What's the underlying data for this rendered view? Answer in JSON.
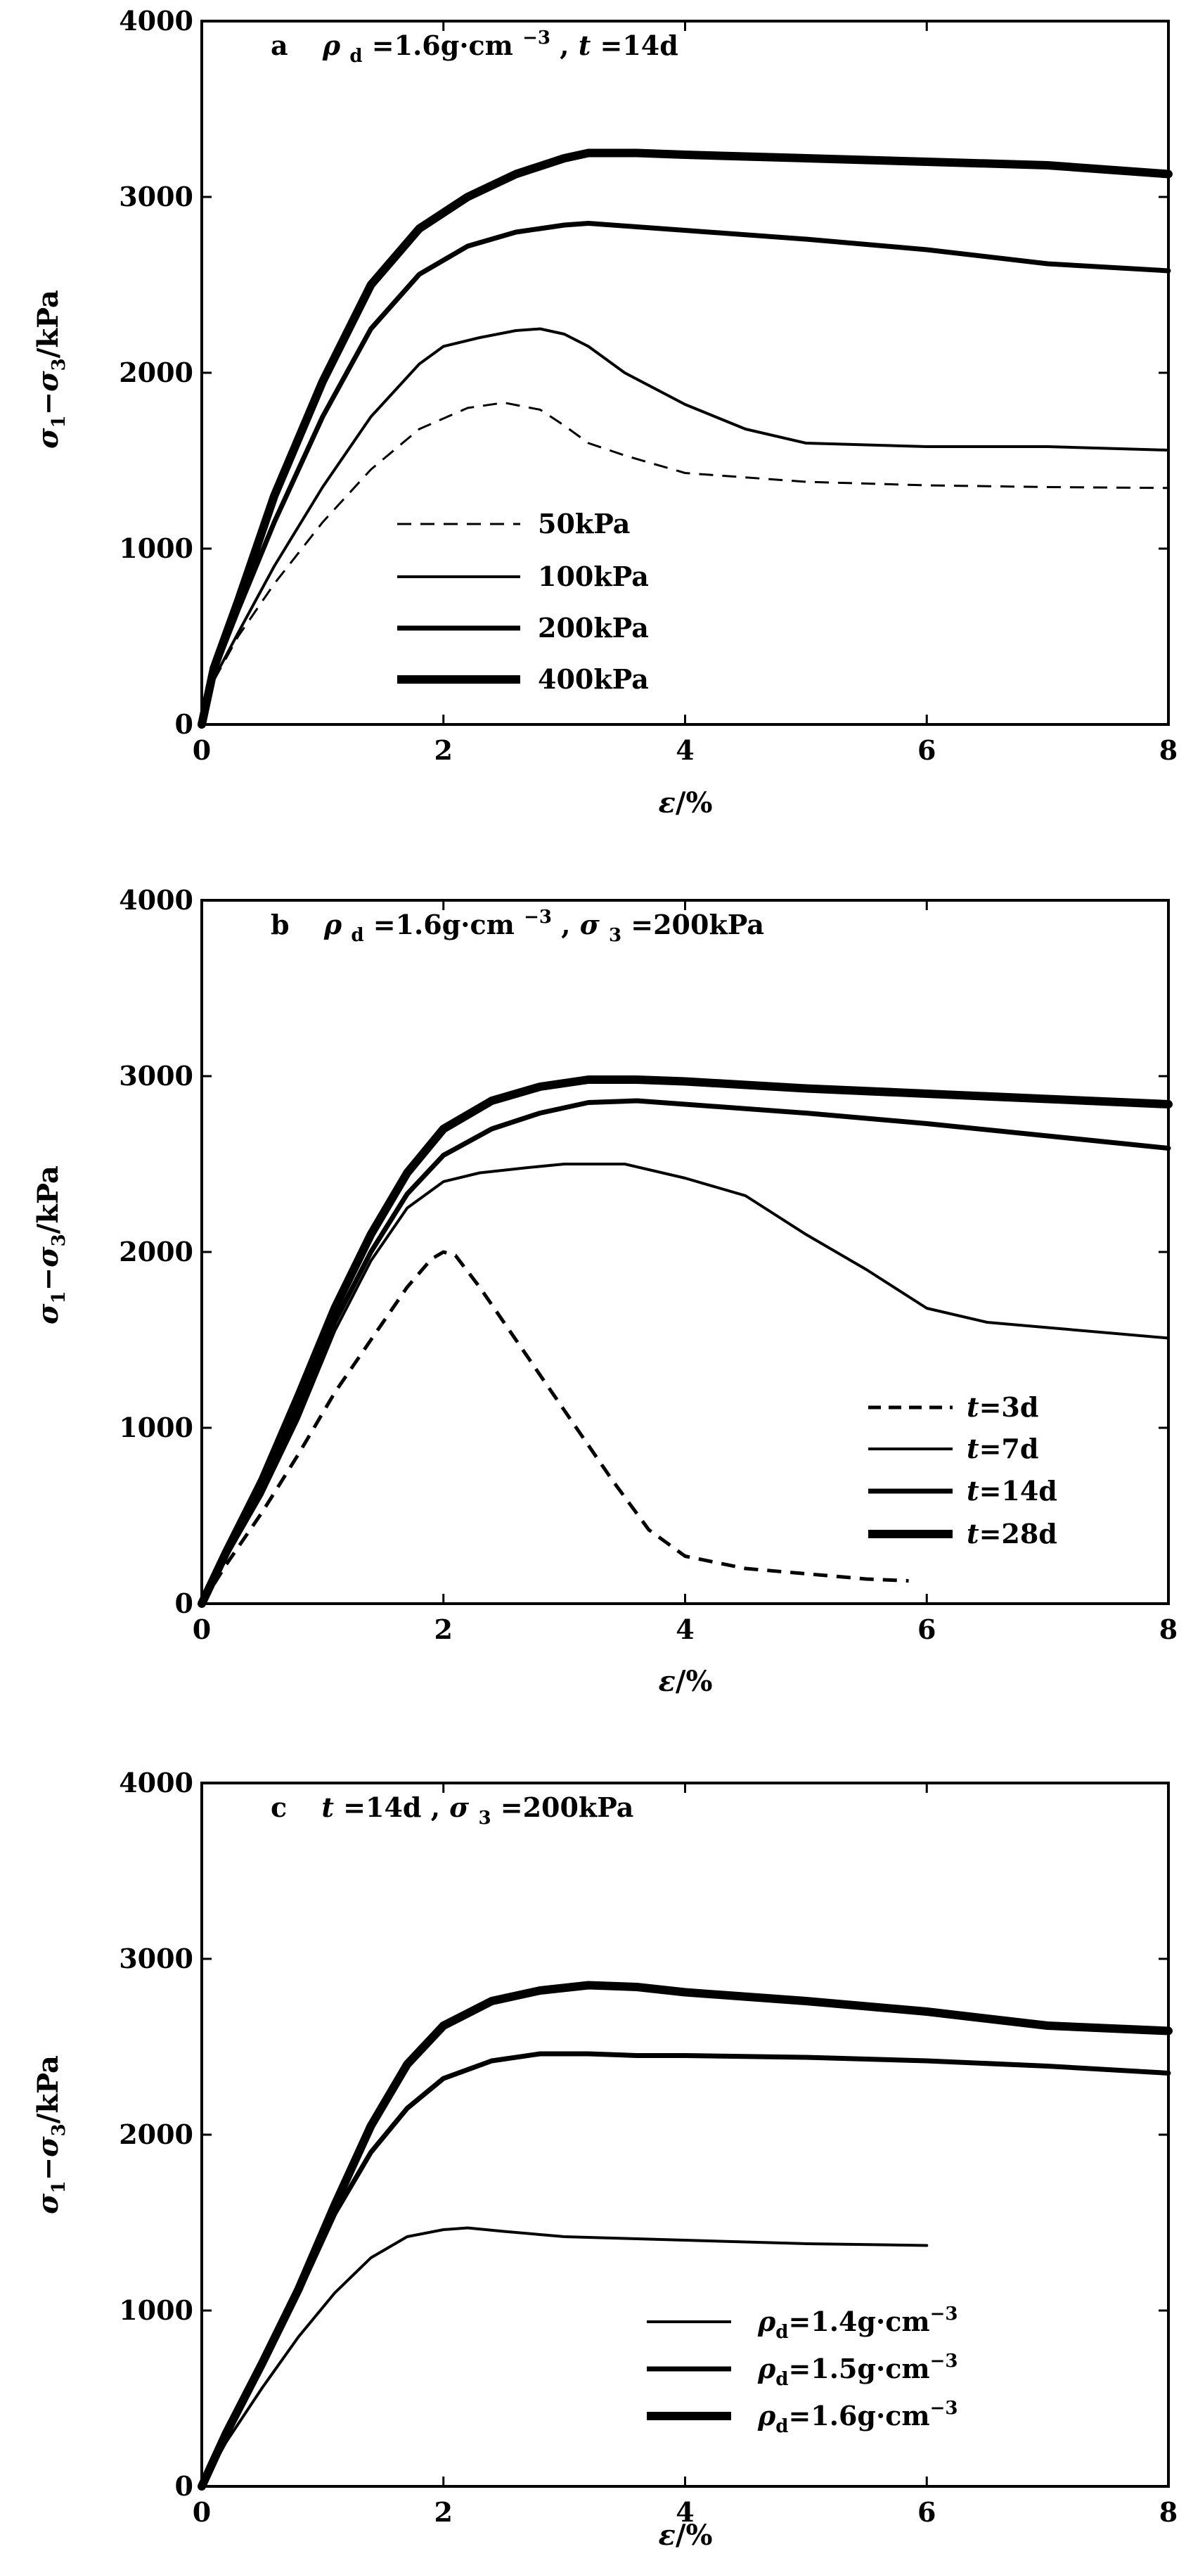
{
  "chart_data": [
    {
      "type": "line",
      "panel": "a",
      "title": "ρd=1.6g·cm⁻³, t=14d",
      "xlabel": "ε/%",
      "ylabel": "σ1−σ3/kPa",
      "xlim": [
        0,
        8
      ],
      "ylim": [
        0,
        4000
      ],
      "xticks": [
        "0",
        "2",
        "4",
        "6",
        "8"
      ],
      "yticks": [
        "0",
        "1000",
        "2000",
        "3000",
        "4000"
      ],
      "grid": false,
      "legend_placement": "center-left",
      "series": [
        {
          "name": "50kPa",
          "style": "dashed",
          "width": 3,
          "x": [
            0,
            0.1,
            0.3,
            0.6,
            1.0,
            1.4,
            1.8,
            2.2,
            2.5,
            2.8,
            3.0,
            3.2,
            3.5,
            4.0,
            5.0,
            6.0,
            7.0,
            8.0
          ],
          "y": [
            0,
            250,
            500,
            800,
            1150,
            1450,
            1680,
            1800,
            1830,
            1790,
            1700,
            1600,
            1530,
            1430,
            1380,
            1360,
            1350,
            1345
          ]
        },
        {
          "name": "100kPa",
          "style": "solid",
          "width": 4,
          "x": [
            0,
            0.1,
            0.3,
            0.6,
            1.0,
            1.4,
            1.8,
            2.0,
            2.3,
            2.6,
            2.8,
            3.0,
            3.2,
            3.5,
            4.0,
            4.5,
            5.0,
            6.0,
            7.0,
            8.0
          ],
          "y": [
            0,
            260,
            520,
            900,
            1350,
            1750,
            2050,
            2150,
            2200,
            2240,
            2250,
            2220,
            2150,
            2000,
            1820,
            1680,
            1600,
            1580,
            1580,
            1560
          ]
        },
        {
          "name": "200kPa",
          "style": "solid",
          "width": 7,
          "x": [
            0,
            0.1,
            0.3,
            0.6,
            1.0,
            1.4,
            1.8,
            2.2,
            2.6,
            3.0,
            3.2,
            3.6,
            4.0,
            5.0,
            6.0,
            7.0,
            8.0
          ],
          "y": [
            0,
            300,
            650,
            1150,
            1750,
            2250,
            2560,
            2720,
            2800,
            2840,
            2850,
            2830,
            2810,
            2760,
            2700,
            2620,
            2580
          ]
        },
        {
          "name": "400kPa",
          "style": "solid",
          "width": 12,
          "x": [
            0,
            0.1,
            0.3,
            0.6,
            1.0,
            1.4,
            1.8,
            2.2,
            2.6,
            3.0,
            3.2,
            3.6,
            4.0,
            5.0,
            6.0,
            7.0,
            8.0
          ],
          "y": [
            0,
            320,
            700,
            1300,
            1950,
            2500,
            2820,
            3000,
            3130,
            3220,
            3250,
            3250,
            3240,
            3220,
            3200,
            3180,
            3130
          ]
        }
      ]
    },
    {
      "type": "line",
      "panel": "b",
      "title": "ρd=1.6g·cm⁻³, σ3=200kPa",
      "xlabel": "ε/%",
      "ylabel": "σ1−σ3/kPa",
      "xlim": [
        0,
        8
      ],
      "ylim": [
        0,
        4000
      ],
      "xticks": [
        "0",
        "2",
        "4",
        "6",
        "8"
      ],
      "yticks": [
        "0",
        "1000",
        "2000",
        "3000",
        "4000"
      ],
      "grid": false,
      "legend_placement": "lower-right",
      "series": [
        {
          "name": "t=3d",
          "style": "dashed",
          "width": 5,
          "x": [
            0,
            0.2,
            0.5,
            0.8,
            1.1,
            1.4,
            1.7,
            1.9,
            2.0,
            2.1,
            2.3,
            2.6,
            3.0,
            3.4,
            3.7,
            4.0,
            4.5,
            5.0,
            5.5,
            5.85
          ],
          "y": [
            0,
            220,
            520,
            850,
            1200,
            1500,
            1800,
            1960,
            2000,
            1980,
            1800,
            1500,
            1100,
            700,
            420,
            270,
            200,
            170,
            140,
            130
          ]
        },
        {
          "name": "t=7d",
          "style": "solid",
          "width": 4,
          "x": [
            0,
            0.2,
            0.5,
            0.8,
            1.1,
            1.4,
            1.7,
            2.0,
            2.3,
            2.7,
            3.0,
            3.5,
            4.0,
            4.5,
            5.0,
            5.5,
            6.0,
            6.5,
            7.0,
            7.5,
            8.0
          ],
          "y": [
            0,
            260,
            620,
            1050,
            1550,
            1950,
            2250,
            2400,
            2450,
            2480,
            2500,
            2500,
            2420,
            2320,
            2100,
            1900,
            1680,
            1600,
            1570,
            1540,
            1510
          ]
        },
        {
          "name": "t=14d",
          "style": "solid",
          "width": 7,
          "x": [
            0,
            0.2,
            0.5,
            0.8,
            1.1,
            1.4,
            1.7,
            2.0,
            2.4,
            2.8,
            3.2,
            3.6,
            4.0,
            5.0,
            6.0,
            7.0,
            8.0
          ],
          "y": [
            0,
            270,
            650,
            1100,
            1600,
            2000,
            2330,
            2550,
            2700,
            2790,
            2850,
            2860,
            2840,
            2790,
            2730,
            2660,
            2590
          ]
        },
        {
          "name": "t=28d",
          "style": "solid",
          "width": 12,
          "x": [
            0,
            0.2,
            0.5,
            0.8,
            1.1,
            1.4,
            1.7,
            2.0,
            2.4,
            2.8,
            3.2,
            3.6,
            4.0,
            5.0,
            6.0,
            7.0,
            8.0
          ],
          "y": [
            0,
            290,
            700,
            1180,
            1680,
            2100,
            2450,
            2700,
            2860,
            2940,
            2980,
            2980,
            2970,
            2930,
            2900,
            2870,
            2840
          ]
        }
      ]
    },
    {
      "type": "line",
      "panel": "c",
      "title": "t=14d, σ3=200kPa",
      "xlabel": "ε/%",
      "ylabel": "σ1−σ3/kPa",
      "xlim": [
        0,
        8
      ],
      "ylim": [
        0,
        4000
      ],
      "xticks": [
        "0",
        "2",
        "4",
        "6",
        "8"
      ],
      "yticks": [
        "0",
        "1000",
        "2000",
        "3000",
        "4000"
      ],
      "grid": false,
      "legend_placement": "lower-right",
      "series": [
        {
          "name": "ρd=1.4g·cm⁻³",
          "style": "solid",
          "width": 4,
          "x": [
            0,
            0.2,
            0.5,
            0.8,
            1.1,
            1.4,
            1.7,
            2.0,
            2.2,
            2.5,
            3.0,
            3.5,
            4.0,
            5.0,
            6.0
          ],
          "y": [
            0,
            250,
            560,
            850,
            1100,
            1300,
            1420,
            1460,
            1470,
            1450,
            1420,
            1410,
            1400,
            1380,
            1370
          ]
        },
        {
          "name": "ρd=1.5g·cm⁻³",
          "style": "solid",
          "width": 7,
          "x": [
            0,
            0.2,
            0.5,
            0.8,
            1.1,
            1.4,
            1.7,
            2.0,
            2.4,
            2.8,
            3.2,
            3.6,
            4.0,
            5.0,
            6.0,
            7.0,
            8.0
          ],
          "y": [
            0,
            290,
            680,
            1100,
            1550,
            1900,
            2150,
            2320,
            2420,
            2460,
            2460,
            2450,
            2450,
            2440,
            2420,
            2390,
            2350
          ]
        },
        {
          "name": "ρd=1.6g·cm⁻³",
          "style": "solid",
          "width": 12,
          "x": [
            0,
            0.2,
            0.5,
            0.8,
            1.1,
            1.4,
            1.7,
            2.0,
            2.4,
            2.8,
            3.2,
            3.6,
            4.0,
            5.0,
            6.0,
            7.0,
            8.0
          ],
          "y": [
            0,
            300,
            700,
            1120,
            1600,
            2050,
            2400,
            2620,
            2760,
            2820,
            2850,
            2840,
            2810,
            2760,
            2700,
            2620,
            2590
          ]
        }
      ]
    }
  ],
  "labels": {
    "a": {
      "letter": "a",
      "rho_symbol": "ρ",
      "rho_sub": "d",
      "density": "=1.6g·cm",
      "density_exp": "−3",
      "sep": ", ",
      "t_symbol": "t",
      "t_value": "=14d",
      "legend": [
        "50kPa",
        "100kPa",
        "200kPa",
        "400kPa"
      ]
    },
    "b": {
      "letter": "b",
      "rho_symbol": "ρ",
      "rho_sub": "d",
      "density": "=1.6g·cm",
      "density_exp": "−3",
      "sep": ", ",
      "sigma_symbol": "σ",
      "sigma_sub": "3",
      "sigma_value": "=200kPa",
      "legend": [
        {
          "sym": "t",
          "val": "=3d"
        },
        {
          "sym": "t",
          "val": "=7d"
        },
        {
          "sym": "t",
          "val": "=14d"
        },
        {
          "sym": "t",
          "val": "=28d"
        }
      ]
    },
    "c": {
      "letter": "c",
      "t_symbol": "t",
      "t_value": "=14d",
      "sep": ", ",
      "sigma_symbol": "σ",
      "sigma_sub": "3",
      "sigma_value": "=200kPa",
      "legend": [
        {
          "sym": "ρ",
          "sub": "d",
          "val": "=1.4g·cm",
          "exp": "−3"
        },
        {
          "sym": "ρ",
          "sub": "d",
          "val": "=1.5g·cm",
          "exp": "−3"
        },
        {
          "sym": "ρ",
          "sub": "d",
          "val": "=1.6g·cm",
          "exp": "−3"
        }
      ]
    },
    "ylabel_parts": {
      "sigma": "σ",
      "sub1": "1",
      "minus": "−",
      "sub3": "3",
      "unit": "/kPa"
    },
    "xlabel_parts": {
      "eps": "ε",
      "unit": "/%"
    }
  }
}
